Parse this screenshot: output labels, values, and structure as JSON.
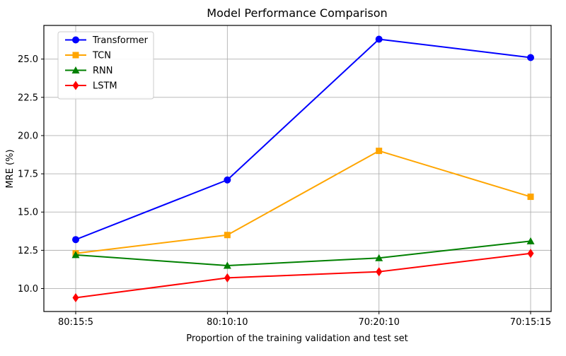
{
  "chart_data": {
    "type": "line",
    "title": "Model Performance Comparison",
    "xlabel": "Proportion of the training validation and test set",
    "ylabel": "MRE (%)",
    "categories": [
      "80:15:5",
      "80:10:10",
      "70:20:10",
      "70:15:15"
    ],
    "series": [
      {
        "name": "Transformer",
        "color": "#0000ff",
        "marker": "circle",
        "values": [
          13.2,
          17.1,
          26.3,
          25.1
        ]
      },
      {
        "name": "TCN",
        "color": "#ffa500",
        "marker": "square",
        "values": [
          12.3,
          13.5,
          19.0,
          16.0
        ]
      },
      {
        "name": "RNN",
        "color": "#008000",
        "marker": "triangle-up",
        "values": [
          12.2,
          11.5,
          12.0,
          13.1
        ]
      },
      {
        "name": "LSTM",
        "color": "#ff0000",
        "marker": "diamond-thin",
        "values": [
          9.4,
          10.7,
          11.1,
          12.3
        ]
      }
    ],
    "yticks": [
      10.0,
      12.5,
      15.0,
      17.5,
      20.0,
      22.5,
      25.0
    ],
    "ytick_labels": [
      "10.0",
      "12.5",
      "15.0",
      "17.5",
      "20.0",
      "22.5",
      "25.0"
    ],
    "ylim": [
      8.5,
      27.2
    ],
    "grid": true,
    "grid_color": "#b0b0b0",
    "axes_edge_color": "#000000",
    "legend_position": "upper left",
    "background_color": "#ffffff"
  }
}
